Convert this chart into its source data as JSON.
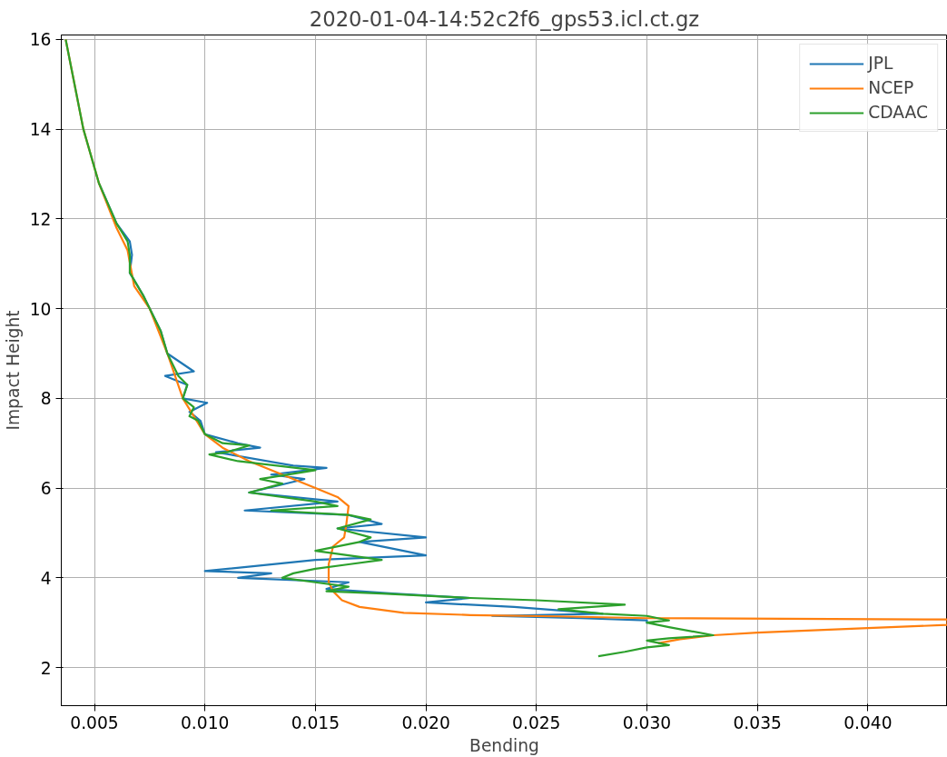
{
  "chart_data": {
    "type": "line",
    "title": "2020-01-04-14:52c2f6_gps53.icl.ct.gz",
    "xlabel": "Bending",
    "ylabel": "Impact Height",
    "xlim": [
      0.0035,
      0.0436
    ],
    "ylim": [
      1.15,
      16.1
    ],
    "xticks": [
      {
        "value": 0.005,
        "label": "0.005"
      },
      {
        "value": 0.01,
        "label": "0.010"
      },
      {
        "value": 0.015,
        "label": "0.015"
      },
      {
        "value": 0.02,
        "label": "0.020"
      },
      {
        "value": 0.025,
        "label": "0.025"
      },
      {
        "value": 0.03,
        "label": "0.030"
      },
      {
        "value": 0.035,
        "label": "0.035"
      },
      {
        "value": 0.04,
        "label": "0.040"
      }
    ],
    "yticks": [
      2,
      4,
      6,
      8,
      10,
      12,
      14,
      16
    ],
    "grid": true,
    "legend": "top right",
    "line_style": "solid",
    "series": [
      {
        "name": "JPL",
        "color": "#1f77b4",
        "x": [
          0.0052,
          0.006,
          0.0066,
          0.0067,
          0.0066,
          0.0072,
          0.008,
          0.0083,
          0.0095,
          0.0082,
          0.0092,
          0.009,
          0.0101,
          0.0093,
          0.0098,
          0.01,
          0.0115,
          0.0125,
          0.0105,
          0.014,
          0.0155,
          0.013,
          0.0145,
          0.012,
          0.016,
          0.0118,
          0.0165,
          0.018,
          0.016,
          0.02,
          0.017,
          0.02,
          0.015,
          0.01,
          0.013,
          0.0115,
          0.0165,
          0.0155,
          0.0185,
          0.022,
          0.02,
          0.024,
          0.028,
          0.023,
          0.027,
          0.03,
          0.03
        ],
        "values": [
          12.8,
          11.9,
          11.5,
          11.2,
          10.8,
          10.3,
          9.5,
          9.0,
          8.6,
          8.5,
          8.3,
          8.0,
          7.9,
          7.7,
          7.5,
          7.2,
          7.0,
          6.9,
          6.8,
          6.5,
          6.45,
          6.3,
          6.2,
          5.9,
          5.7,
          5.5,
          5.4,
          5.2,
          5.1,
          4.9,
          4.8,
          4.5,
          4.4,
          4.15,
          4.1,
          4.0,
          3.9,
          3.75,
          3.65,
          3.55,
          3.45,
          3.35,
          3.2,
          3.15,
          3.1,
          3.05,
          2.98
        ]
      },
      {
        "name": "NCEP",
        "color": "#ff7f0e",
        "x": [
          0.0037,
          0.0045,
          0.0052,
          0.006,
          0.0065,
          0.0068,
          0.0075,
          0.0083,
          0.009,
          0.0095,
          0.01,
          0.0108,
          0.012,
          0.0135,
          0.015,
          0.016,
          0.0165,
          0.0164,
          0.0163,
          0.0158,
          0.0156,
          0.0156,
          0.0158,
          0.0162,
          0.017,
          0.019,
          0.022,
          0.026,
          0.03,
          0.0436,
          0.0436,
          0.04,
          0.035,
          0.033,
          0.0315,
          0.0305
        ],
        "values": [
          16.0,
          14,
          12.8,
          11.8,
          11.3,
          10.5,
          10,
          9,
          8,
          7.6,
          7.2,
          6.9,
          6.6,
          6.3,
          6.0,
          5.8,
          5.6,
          5.2,
          4.9,
          4.7,
          4.3,
          3.9,
          3.7,
          3.5,
          3.35,
          3.22,
          3.17,
          3.14,
          3.1,
          3.07,
          2.95,
          2.88,
          2.78,
          2.72,
          2.63,
          2.54
        ]
      },
      {
        "name": "CDAAC",
        "color": "#2ca02c",
        "x": [
          0.0037,
          0.0045,
          0.0052,
          0.006,
          0.0065,
          0.0066,
          0.0066,
          0.0072,
          0.008,
          0.0083,
          0.0088,
          0.0092,
          0.009,
          0.0095,
          0.0093,
          0.0097,
          0.01,
          0.0108,
          0.012,
          0.011,
          0.0102,
          0.0115,
          0.015,
          0.0125,
          0.0135,
          0.012,
          0.015,
          0.016,
          0.013,
          0.0165,
          0.0175,
          0.016,
          0.0175,
          0.017,
          0.015,
          0.018,
          0.0165,
          0.015,
          0.014,
          0.0135,
          0.015,
          0.0165,
          0.0155,
          0.018,
          0.022,
          0.025,
          0.029,
          0.026,
          0.028,
          0.03,
          0.031,
          0.03,
          0.031,
          0.033,
          0.031,
          0.03,
          0.031,
          0.03,
          0.029,
          0.0278
        ],
        "values": [
          16.0,
          14,
          12.8,
          11.9,
          11.5,
          11.2,
          10.8,
          10.3,
          9.5,
          9.0,
          8.5,
          8.3,
          8.0,
          7.8,
          7.6,
          7.5,
          7.2,
          7.0,
          6.95,
          6.8,
          6.75,
          6.6,
          6.4,
          6.2,
          6.1,
          5.9,
          5.7,
          5.6,
          5.5,
          5.4,
          5.3,
          5.1,
          4.9,
          4.8,
          4.6,
          4.4,
          4.3,
          4.2,
          4.1,
          4.0,
          3.9,
          3.8,
          3.7,
          3.65,
          3.55,
          3.5,
          3.4,
          3.3,
          3.2,
          3.15,
          3.05,
          3.0,
          2.9,
          2.72,
          2.65,
          2.6,
          2.5,
          2.45,
          2.35,
          2.25
        ]
      }
    ]
  }
}
